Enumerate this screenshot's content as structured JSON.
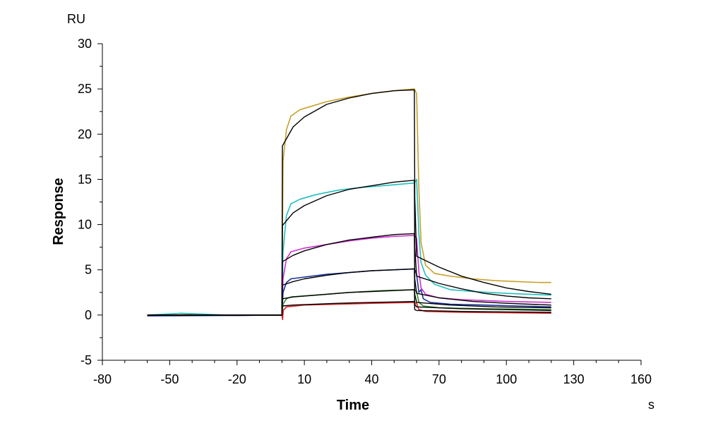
{
  "chart_data": {
    "type": "line",
    "title": "",
    "xlabel": "Time",
    "ylabel": "Response",
    "x_unit": "s",
    "y_unit": "RU",
    "xlim": [
      -80,
      160
    ],
    "ylim": [
      -5,
      30
    ],
    "x_ticks": [
      -80,
      -50,
      -20,
      10,
      40,
      70,
      100,
      130,
      160
    ],
    "y_ticks": [
      -5,
      0,
      5,
      10,
      15,
      20,
      25,
      30
    ],
    "grid": false,
    "legend": "none",
    "series": [
      {
        "color": "#C8A02A",
        "points": [
          [
            -60,
            0.0
          ],
          [
            -40,
            0.05
          ],
          [
            -20,
            -0.05
          ],
          [
            -5,
            0.0
          ],
          [
            0,
            0.0
          ],
          [
            0.5,
            17.0
          ],
          [
            2,
            20.5
          ],
          [
            4,
            22.0
          ],
          [
            8,
            22.7
          ],
          [
            12,
            23.0
          ],
          [
            20,
            23.6
          ],
          [
            30,
            24.1
          ],
          [
            40,
            24.5
          ],
          [
            50,
            24.8
          ],
          [
            59,
            25.0
          ],
          [
            60,
            24.5
          ],
          [
            61,
            14.0
          ],
          [
            62,
            8.0
          ],
          [
            64,
            5.5
          ],
          [
            68,
            4.6
          ],
          [
            75,
            4.3
          ],
          [
            85,
            4.0
          ],
          [
            95,
            3.8
          ],
          [
            105,
            3.7
          ],
          [
            115,
            3.6
          ],
          [
            120,
            3.6
          ]
        ]
      },
      {
        "color": "#20C0C0",
        "points": [
          [
            -60,
            0.0
          ],
          [
            -45,
            0.2
          ],
          [
            -35,
            0.1
          ],
          [
            -20,
            -0.05
          ],
          [
            -5,
            0.0
          ],
          [
            0,
            0.0
          ],
          [
            0.5,
            7.0
          ],
          [
            2,
            11.0
          ],
          [
            4,
            12.3
          ],
          [
            8,
            12.8
          ],
          [
            15,
            13.3
          ],
          [
            25,
            13.8
          ],
          [
            35,
            14.1
          ],
          [
            45,
            14.3
          ],
          [
            59,
            14.6
          ],
          [
            60,
            15.0
          ],
          [
            61,
            9.0
          ],
          [
            62,
            5.8
          ],
          [
            64,
            4.4
          ],
          [
            68,
            3.4
          ],
          [
            75,
            2.8
          ],
          [
            85,
            2.6
          ],
          [
            100,
            2.4
          ],
          [
            110,
            2.3
          ],
          [
            120,
            2.2
          ]
        ]
      },
      {
        "color": "#D030D0",
        "points": [
          [
            -60,
            0.0
          ],
          [
            -20,
            0.0
          ],
          [
            0,
            0.0
          ],
          [
            0.5,
            4.0
          ],
          [
            2,
            6.2
          ],
          [
            4,
            7.0
          ],
          [
            10,
            7.4
          ],
          [
            20,
            7.8
          ],
          [
            30,
            8.2
          ],
          [
            40,
            8.5
          ],
          [
            50,
            8.7
          ],
          [
            59,
            8.8
          ],
          [
            60,
            8.5
          ],
          [
            61,
            4.8
          ],
          [
            62,
            3.0
          ],
          [
            64,
            2.3
          ],
          [
            70,
            1.9
          ],
          [
            80,
            1.7
          ],
          [
            90,
            1.6
          ],
          [
            100,
            1.5
          ],
          [
            120,
            1.4
          ]
        ]
      },
      {
        "color": "#1A2F9A",
        "points": [
          [
            -60,
            -0.1
          ],
          [
            -20,
            -0.05
          ],
          [
            0,
            0.0
          ],
          [
            0.5,
            2.5
          ],
          [
            2,
            3.6
          ],
          [
            4,
            4.0
          ],
          [
            10,
            4.2
          ],
          [
            20,
            4.5
          ],
          [
            30,
            4.7
          ],
          [
            40,
            4.9
          ],
          [
            50,
            5.0
          ],
          [
            59,
            5.1
          ],
          [
            60,
            4.5
          ],
          [
            61,
            2.5
          ],
          [
            62,
            2.8
          ],
          [
            63,
            1.8
          ],
          [
            66,
            1.4
          ],
          [
            75,
            1.2
          ],
          [
            90,
            1.1
          ],
          [
            105,
            1.0
          ],
          [
            120,
            0.9
          ]
        ]
      },
      {
        "color": "#2E8B2E",
        "points": [
          [
            -60,
            0.0
          ],
          [
            -20,
            0.0
          ],
          [
            0,
            0.0
          ],
          [
            0.5,
            1.2
          ],
          [
            2,
            1.8
          ],
          [
            4,
            2.0
          ],
          [
            15,
            2.2
          ],
          [
            30,
            2.5
          ],
          [
            45,
            2.7
          ],
          [
            59,
            2.8
          ],
          [
            60,
            2.6
          ],
          [
            61,
            1.4
          ],
          [
            63,
            1.0
          ],
          [
            70,
            0.8
          ],
          [
            90,
            0.7
          ],
          [
            120,
            0.6
          ]
        ]
      },
      {
        "color": "#E02020",
        "points": [
          [
            -60,
            0.0
          ],
          [
            -20,
            0.0
          ],
          [
            0,
            0.0
          ],
          [
            0.3,
            -0.5
          ],
          [
            0.6,
            0.5
          ],
          [
            2,
            0.9
          ],
          [
            10,
            1.1
          ],
          [
            25,
            1.2
          ],
          [
            40,
            1.3
          ],
          [
            59,
            1.4
          ],
          [
            60,
            1.3
          ],
          [
            61,
            0.6
          ],
          [
            64,
            0.4
          ],
          [
            80,
            0.3
          ],
          [
            100,
            0.25
          ],
          [
            120,
            0.2
          ]
        ]
      }
    ],
    "fit_series": [
      {
        "color": "#000000",
        "points": [
          [
            -60,
            0.0
          ],
          [
            0,
            0.0
          ],
          [
            0.2,
            18.7
          ],
          [
            5,
            20.8
          ],
          [
            10,
            21.9
          ],
          [
            20,
            23.3
          ],
          [
            30,
            24.0
          ],
          [
            40,
            24.5
          ],
          [
            50,
            24.8
          ],
          [
            59,
            24.9
          ],
          [
            59.2,
            13.0
          ],
          [
            60,
            6.5
          ],
          [
            70,
            5.3
          ],
          [
            80,
            4.3
          ],
          [
            90,
            3.6
          ],
          [
            100,
            3.0
          ],
          [
            110,
            2.6
          ],
          [
            120,
            2.3
          ]
        ]
      },
      {
        "color": "#000000",
        "points": [
          [
            -60,
            0.0
          ],
          [
            0,
            0.0
          ],
          [
            0.2,
            9.9
          ],
          [
            5,
            11.3
          ],
          [
            10,
            12.1
          ],
          [
            20,
            13.2
          ],
          [
            30,
            13.9
          ],
          [
            40,
            14.3
          ],
          [
            50,
            14.7
          ],
          [
            59,
            14.9
          ],
          [
            59.2,
            7.5
          ],
          [
            60,
            4.3
          ],
          [
            70,
            3.5
          ],
          [
            80,
            2.9
          ],
          [
            90,
            2.4
          ],
          [
            100,
            2.1
          ],
          [
            110,
            1.9
          ],
          [
            120,
            1.8
          ]
        ]
      },
      {
        "color": "#000000",
        "points": [
          [
            -60,
            0.0
          ],
          [
            0,
            0.0
          ],
          [
            0.2,
            5.9
          ],
          [
            5,
            6.6
          ],
          [
            10,
            7.1
          ],
          [
            20,
            7.8
          ],
          [
            30,
            8.3
          ],
          [
            40,
            8.6
          ],
          [
            50,
            8.9
          ],
          [
            59,
            9.0
          ],
          [
            59.2,
            4.0
          ],
          [
            60,
            2.4
          ],
          [
            70,
            1.9
          ],
          [
            85,
            1.5
          ],
          [
            100,
            1.3
          ],
          [
            120,
            1.1
          ]
        ]
      },
      {
        "color": "#000000",
        "points": [
          [
            -60,
            0.0
          ],
          [
            0,
            0.0
          ],
          [
            0.2,
            3.3
          ],
          [
            5,
            3.7
          ],
          [
            10,
            4.0
          ],
          [
            20,
            4.4
          ],
          [
            30,
            4.7
          ],
          [
            40,
            4.9
          ],
          [
            50,
            5.0
          ],
          [
            59,
            5.1
          ],
          [
            59.2,
            2.3
          ],
          [
            60,
            1.4
          ],
          [
            75,
            1.1
          ],
          [
            95,
            0.9
          ],
          [
            120,
            0.8
          ]
        ]
      },
      {
        "color": "#000000",
        "points": [
          [
            -60,
            0.0
          ],
          [
            0,
            0.0
          ],
          [
            0.2,
            1.8
          ],
          [
            5,
            2.0
          ],
          [
            10,
            2.1
          ],
          [
            20,
            2.3
          ],
          [
            30,
            2.5
          ],
          [
            40,
            2.6
          ],
          [
            50,
            2.7
          ],
          [
            59,
            2.8
          ],
          [
            59.2,
            1.2
          ],
          [
            60,
            0.9
          ],
          [
            80,
            0.7
          ],
          [
            100,
            0.6
          ],
          [
            120,
            0.5
          ]
        ]
      },
      {
        "color": "#000000",
        "points": [
          [
            -60,
            0.0
          ],
          [
            0,
            0.0
          ],
          [
            0.2,
            1.0
          ],
          [
            5,
            1.1
          ],
          [
            15,
            1.2
          ],
          [
            25,
            1.3
          ],
          [
            40,
            1.4
          ],
          [
            50,
            1.45
          ],
          [
            59,
            1.5
          ],
          [
            59.2,
            0.6
          ],
          [
            60,
            0.5
          ],
          [
            80,
            0.4
          ],
          [
            100,
            0.35
          ],
          [
            120,
            0.3
          ]
        ]
      }
    ]
  }
}
